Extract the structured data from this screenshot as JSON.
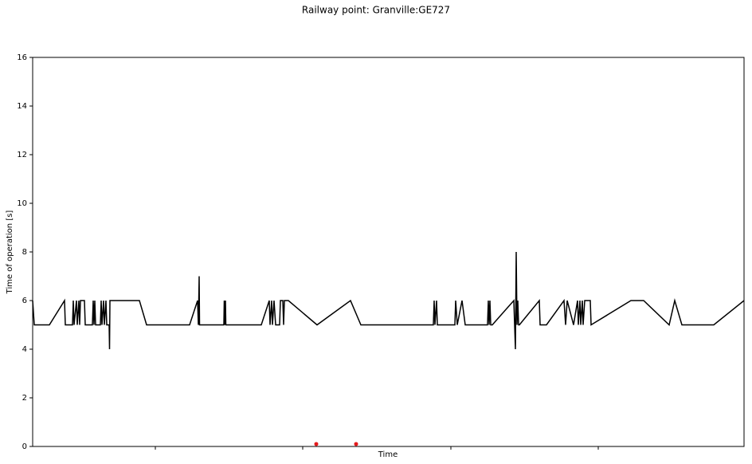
{
  "chart_data": {
    "type": "line",
    "title": "Railway point: Granville:GE727",
    "xlabel": "Time",
    "ylabel": "Time of operation [s]",
    "xlim": [
      0,
      893
    ],
    "xticks": [
      154,
      339,
      525,
      710
    ],
    "ylim": [
      0,
      16
    ],
    "yticks": [
      0,
      2,
      4,
      6,
      8,
      10,
      12,
      14,
      16
    ],
    "series": [
      {
        "type": "line",
        "color": "#000000",
        "x": [
          0,
          2,
          21,
          40,
          41,
          50,
          51,
          52,
          55,
          56,
          58,
          59,
          60,
          65,
          66,
          75,
          76,
          77,
          78,
          79,
          85,
          86,
          87,
          89,
          90,
          92,
          93,
          96,
          96.5,
          97,
          134,
          143,
          197,
          207,
          208,
          209,
          209.5,
          240,
          240.5,
          241,
          242,
          242.5,
          287,
          297,
          298,
          300,
          301,
          303,
          305,
          310,
          311,
          314,
          315,
          316,
          321,
          357,
          399,
          412,
          503,
          504,
          505,
          507,
          508,
          530,
          531,
          533,
          539,
          543,
          571,
          572,
          573,
          574,
          575,
          577,
          604,
          606,
          607,
          608,
          609,
          610,
          611,
          636,
          637,
          645,
          667,
          669,
          671,
          679,
          684,
          685,
          687,
          688,
          690,
          691,
          693,
          700,
          701,
          751,
          767,
          799,
          806,
          815,
          855,
          893
        ],
        "values": [
          6,
          5,
          5,
          6,
          5,
          5,
          6,
          5,
          6,
          5,
          6,
          5,
          6,
          6,
          5,
          5,
          6,
          5,
          6,
          5,
          5,
          6,
          5,
          6,
          5,
          6,
          5,
          5,
          4,
          6,
          6,
          5,
          5,
          6,
          5,
          7,
          5,
          5,
          6,
          5,
          6,
          5,
          5,
          6,
          5,
          6,
          5,
          6,
          5,
          5,
          6,
          6,
          5,
          6,
          6,
          5,
          6,
          5,
          5,
          6,
          5,
          6,
          5,
          5,
          6,
          5,
          6,
          5,
          5,
          6,
          5,
          6,
          5,
          5,
          6,
          4,
          8,
          5,
          6,
          5,
          5,
          6,
          5,
          5,
          6,
          5,
          6,
          5,
          6,
          5,
          6,
          5,
          6,
          5,
          6,
          6,
          5,
          6,
          6,
          5,
          6,
          5,
          5,
          6
        ]
      },
      {
        "type": "scatter",
        "color": "#e41a1c",
        "x": [
          356,
          406
        ],
        "values": [
          0.1,
          0.1
        ]
      }
    ]
  }
}
